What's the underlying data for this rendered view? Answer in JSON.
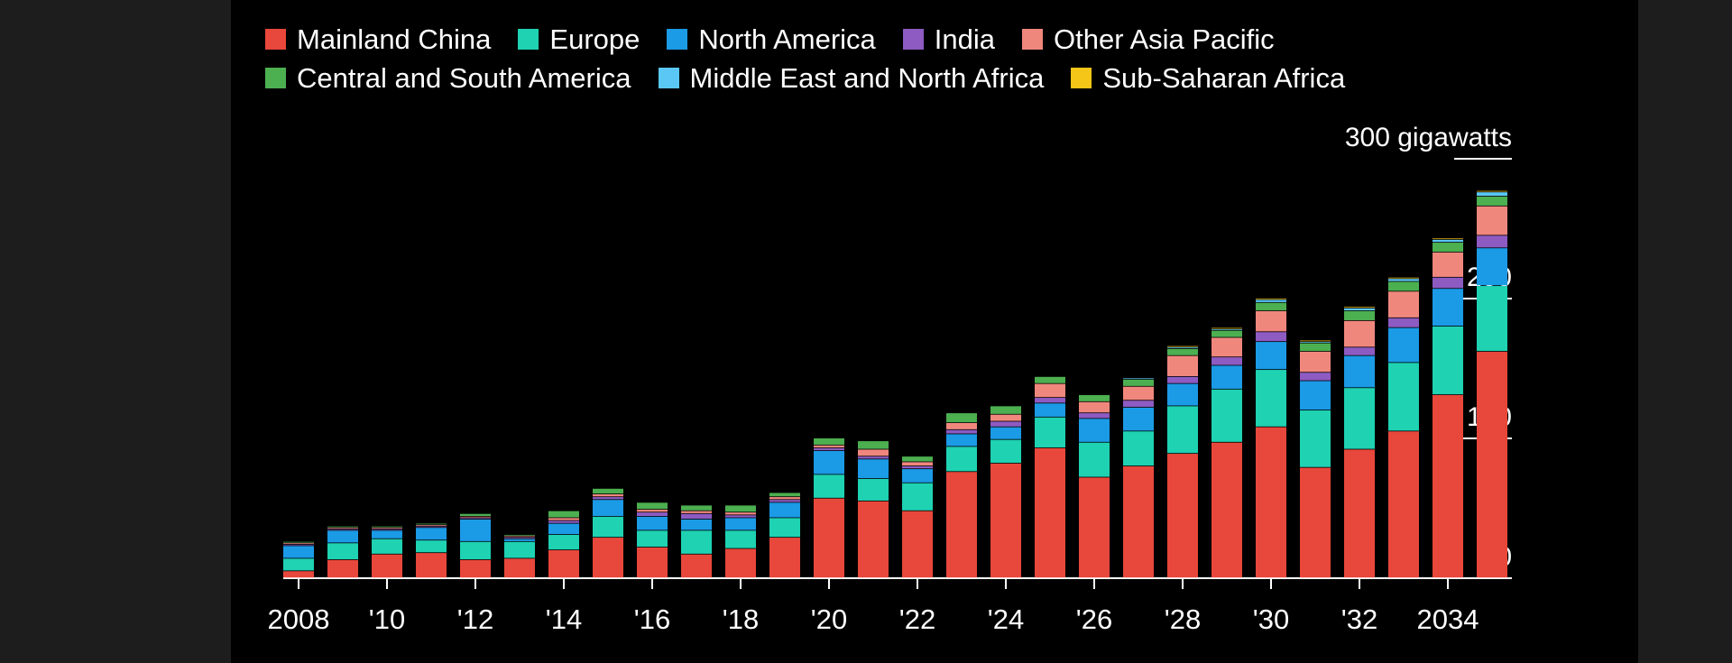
{
  "chart_data": {
    "type": "bar",
    "stacked": true,
    "unit_label": "300 gigawatts",
    "ylim": [
      0,
      300
    ],
    "yticks": [
      {
        "value": 0,
        "label": "0"
      },
      {
        "value": 100,
        "label": "100"
      },
      {
        "value": 200,
        "label": "200"
      },
      {
        "value": 300,
        "label": "300 gigawatts"
      }
    ],
    "categories": [
      "2008",
      "2009",
      "2010",
      "2011",
      "2012",
      "2013",
      "2014",
      "2015",
      "2016",
      "2017",
      "2018",
      "2019",
      "2020",
      "2021",
      "2022",
      "2023",
      "2024",
      "2025",
      "2026",
      "2027",
      "2028",
      "2029",
      "2030",
      "2031",
      "2032",
      "2033",
      "2034",
      "2035"
    ],
    "xtick_labels": [
      {
        "index": 0,
        "label": "2008"
      },
      {
        "index": 2,
        "label": "'10"
      },
      {
        "index": 4,
        "label": "'12"
      },
      {
        "index": 6,
        "label": "'14"
      },
      {
        "index": 8,
        "label": "'16"
      },
      {
        "index": 10,
        "label": "'18"
      },
      {
        "index": 12,
        "label": "'20"
      },
      {
        "index": 14,
        "label": "'22"
      },
      {
        "index": 16,
        "label": "'24"
      },
      {
        "index": 18,
        "label": "'26"
      },
      {
        "index": 20,
        "label": "'28"
      },
      {
        "index": 22,
        "label": "'30"
      },
      {
        "index": 24,
        "label": "'32"
      },
      {
        "index": 26,
        "label": "2034"
      }
    ],
    "series": [
      {
        "name": "Mainland China",
        "color": "#e8473b",
        "values": [
          5,
          13,
          17,
          18,
          13,
          14,
          20,
          29,
          22,
          17,
          21,
          29,
          57,
          55,
          48,
          76,
          82,
          93,
          72,
          80,
          89,
          97,
          108,
          79,
          92,
          105,
          131,
          162
        ]
      },
      {
        "name": "Europe",
        "color": "#1ed2b2",
        "values": [
          9,
          12,
          11,
          9,
          13,
          12,
          11,
          15,
          12,
          17,
          13,
          14,
          17,
          16,
          20,
          18,
          17,
          22,
          25,
          25,
          34,
          38,
          41,
          41,
          44,
          49,
          49,
          47
        ]
      },
      {
        "name": "North America",
        "color": "#1b9ae6",
        "values": [
          9,
          9,
          6,
          9,
          16,
          2,
          8,
          12,
          10,
          8,
          9,
          11,
          17,
          14,
          10,
          9,
          9,
          10,
          17,
          17,
          16,
          17,
          20,
          21,
          23,
          25,
          27,
          27
        ]
      },
      {
        "name": "India",
        "color": "#8d5bc2",
        "values": [
          1,
          1,
          1,
          1,
          1,
          1,
          2,
          2,
          3,
          4,
          2,
          2,
          2,
          2,
          2,
          3,
          4,
          4,
          4,
          5,
          5,
          6,
          7,
          6,
          6,
          7,
          8,
          9
        ]
      },
      {
        "name": "Other Asia Pacific",
        "color": "#f0877d",
        "values": [
          1,
          1,
          1,
          1,
          1,
          1,
          2,
          2,
          2,
          2,
          2,
          2,
          2,
          5,
          3,
          5,
          5,
          10,
          8,
          10,
          15,
          14,
          15,
          15,
          19,
          19,
          18,
          21
        ]
      },
      {
        "name": "Central and South America",
        "color": "#4caf50",
        "values": [
          1,
          1,
          1,
          1,
          2,
          1,
          5,
          4,
          5,
          4,
          5,
          3,
          5,
          6,
          4,
          7,
          6,
          5,
          5,
          5,
          5,
          5,
          6,
          6,
          7,
          7,
          7,
          7
        ]
      },
      {
        "name": "Middle East and North Africa",
        "color": "#5bc7f5",
        "values": [
          0,
          0,
          0,
          0,
          0,
          0,
          0,
          0,
          0,
          0,
          0,
          0,
          0,
          0,
          0,
          0,
          0,
          0,
          0,
          1,
          1,
          1,
          2,
          1,
          2,
          2,
          2,
          3
        ]
      },
      {
        "name": "Sub-Saharan Africa",
        "color": "#f5c518",
        "values": [
          0,
          0,
          0,
          0,
          0,
          0,
          0,
          0,
          0,
          0,
          0,
          0,
          0,
          0,
          0,
          0,
          0,
          0,
          0,
          0,
          1,
          1,
          1,
          1,
          1,
          1,
          1,
          1
        ]
      }
    ],
    "legend_rows": [
      [
        "Mainland China",
        "Europe",
        "North America",
        "India",
        "Other Asia Pacific"
      ],
      [
        "Central and South America",
        "Middle East and North Africa",
        "Sub-Saharan Africa"
      ]
    ],
    "legend_position": "top-left",
    "grid": false
  }
}
